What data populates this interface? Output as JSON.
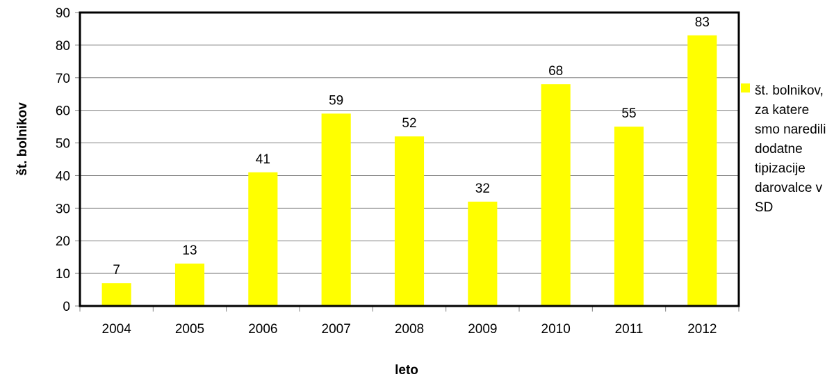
{
  "chart_data": {
    "type": "bar",
    "categories": [
      "2004",
      "2005",
      "2006",
      "2007",
      "2008",
      "2009",
      "2010",
      "2011",
      "2012"
    ],
    "series": [
      {
        "name": "št. bolnikov, za katere smo naredili dodatne tipizacije darovalce v SD",
        "values": [
          7,
          13,
          41,
          59,
          52,
          32,
          68,
          55,
          83
        ],
        "color": "#ffff00"
      }
    ],
    "xlabel": "leto",
    "ylabel": "št. bolnikov",
    "ylim": [
      0,
      90
    ],
    "yticks": [
      0,
      10,
      20,
      30,
      40,
      50,
      60,
      70,
      80,
      90
    ],
    "grid": true,
    "data_labels": true,
    "legend_position": "right"
  }
}
